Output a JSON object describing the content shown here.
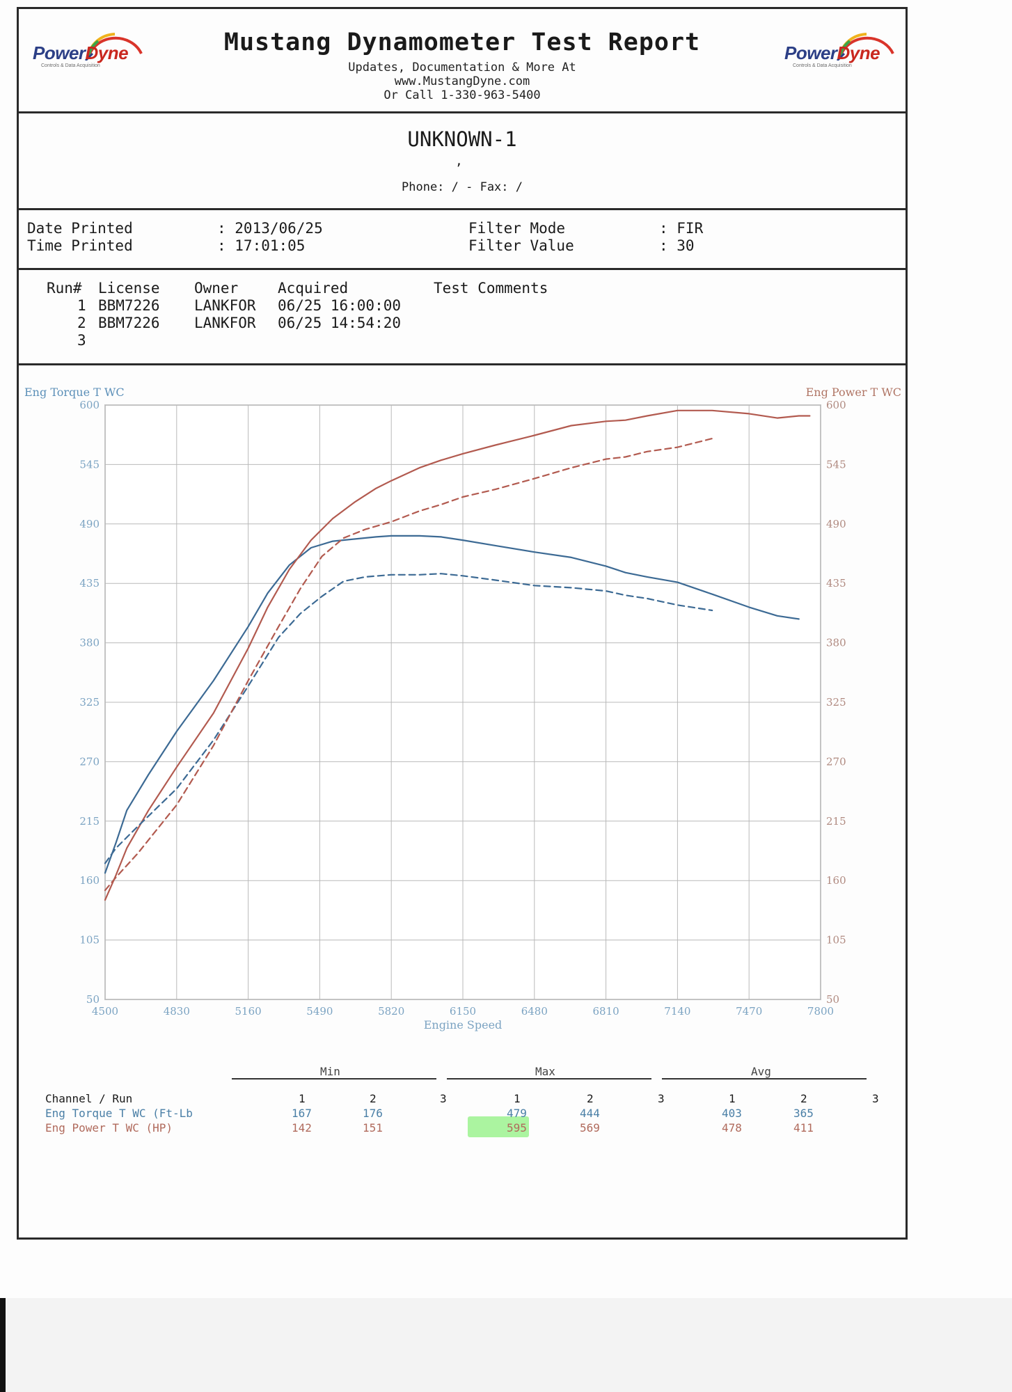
{
  "header": {
    "title": "Mustang Dynamometer Test Report",
    "lines": [
      "Updates, Documentation & More At",
      "www.MustangDyne.com",
      "Or Call 1-330-963-5400"
    ],
    "logo": {
      "name": "PowerDyne",
      "word_a": "Power",
      "word_b": "Dyne",
      "tagline": "Controls & Data Acquisition"
    }
  },
  "customer": {
    "title": "UNKNOWN-1",
    "comma": ",",
    "phone_line": "Phone:  /  - Fax:  /"
  },
  "settings": {
    "date_label": "Date Printed",
    "date_value": ": 2013/06/25",
    "time_label": "Time Printed",
    "time_value": ": 17:01:05",
    "filter_mode_label": "Filter Mode",
    "filter_mode_value": ": FIR",
    "filter_value_label": "Filter Value",
    "filter_value_value": ": 30"
  },
  "runs": {
    "headers": {
      "run": "Run#",
      "license": "License",
      "owner": "Owner",
      "acquired": "Acquired",
      "comments": "Test Comments"
    },
    "rows": [
      {
        "run": "1",
        "license": "BBM7226",
        "owner": "LANKFOR",
        "acquired": "06/25 16:00:00"
      },
      {
        "run": "2",
        "license": "BBM7226",
        "owner": "LANKFOR",
        "acquired": "06/25 14:54:20"
      },
      {
        "run": "3",
        "license": "",
        "owner": "",
        "acquired": ""
      }
    ]
  },
  "chart_data": {
    "type": "line",
    "ylabel_left": "Eng Torque T WC",
    "ylabel_right": "Eng Power T WC",
    "xlabel": "Engine Speed",
    "x_ticks": [
      4500,
      4830,
      5160,
      5490,
      5820,
      6150,
      6480,
      6810,
      7140,
      7470,
      7800
    ],
    "y_ticks": [
      50,
      105,
      160,
      215,
      270,
      325,
      380,
      435,
      490,
      545,
      600
    ],
    "xlim": [
      4500,
      7800
    ],
    "ylim": [
      50,
      600
    ],
    "grid": true,
    "colors": {
      "torque": "#3c6a94",
      "power": "#b25a4f",
      "axis_label_left": "#5b8fb8",
      "axis_label_right": "#b07565"
    },
    "series": [
      {
        "channel": "torque",
        "run": "1",
        "style": "solid",
        "x": [
          4500,
          4550,
          4600,
          4700,
          4830,
          5000,
          5160,
          5250,
          5350,
          5450,
          5550,
          5650,
          5750,
          5820,
          5950,
          6050,
          6150,
          6300,
          6480,
          6650,
          6810,
          6900,
          7000,
          7140,
          7300,
          7470,
          7600,
          7700
        ],
        "y": [
          167,
          195,
          225,
          258,
          298,
          345,
          395,
          426,
          452,
          468,
          474,
          476,
          478,
          479,
          479,
          478,
          475,
          470,
          464,
          459,
          451,
          445,
          441,
          436,
          425,
          413,
          405,
          402
        ]
      },
      {
        "channel": "power",
        "run": "1",
        "style": "solid",
        "x": [
          4500,
          4550,
          4600,
          4700,
          4830,
          5000,
          5160,
          5250,
          5350,
          5450,
          5550,
          5650,
          5750,
          5820,
          5950,
          6050,
          6150,
          6300,
          6480,
          6650,
          6810,
          6900,
          7000,
          7140,
          7300,
          7470,
          7600,
          7700,
          7750
        ],
        "y": [
          142,
          165,
          190,
          225,
          265,
          315,
          375,
          413,
          448,
          475,
          495,
          510,
          523,
          530,
          542,
          549,
          555,
          563,
          572,
          581,
          585,
          586,
          590,
          595,
          595,
          592,
          588,
          590,
          590
        ]
      },
      {
        "channel": "torque",
        "run": "2",
        "style": "dashed",
        "x": [
          4500,
          4550,
          4650,
          4830,
          5000,
          5160,
          5300,
          5400,
          5500,
          5600,
          5700,
          5820,
          5950,
          6050,
          6150,
          6300,
          6480,
          6650,
          6810,
          6900,
          7000,
          7140,
          7300
        ],
        "y": [
          176,
          190,
          210,
          245,
          290,
          340,
          385,
          407,
          423,
          437,
          441,
          443,
          443,
          444,
          442,
          438,
          433,
          431,
          428,
          424,
          421,
          415,
          410
        ]
      },
      {
        "channel": "power",
        "run": "2",
        "style": "dashed",
        "x": [
          4500,
          4550,
          4650,
          4830,
          5000,
          5160,
          5300,
          5400,
          5500,
          5600,
          5700,
          5820,
          5950,
          6050,
          6150,
          6300,
          6480,
          6650,
          6810,
          6900,
          7000,
          7140,
          7300
        ],
        "y": [
          151,
          163,
          185,
          230,
          285,
          345,
          395,
          430,
          460,
          477,
          485,
          492,
          502,
          508,
          515,
          522,
          532,
          542,
          550,
          552,
          557,
          561,
          569
        ]
      }
    ]
  },
  "summary": {
    "group_headers": [
      "Min",
      "Max",
      "Avg"
    ],
    "channel_run_label": "Channel / Run",
    "run_numbers": [
      "1",
      "2",
      "3",
      "1",
      "2",
      "3",
      "1",
      "2",
      "3"
    ],
    "rows": [
      {
        "label": "Eng Torque T WC (Ft-Lb",
        "values": [
          "167",
          "176",
          "",
          "479",
          "444",
          "",
          "403",
          "365",
          ""
        ]
      },
      {
        "label": "Eng Power T WC (HP)",
        "values": [
          "142",
          "151",
          "",
          "595",
          "569",
          "",
          "478",
          "411",
          ""
        ]
      }
    ]
  }
}
